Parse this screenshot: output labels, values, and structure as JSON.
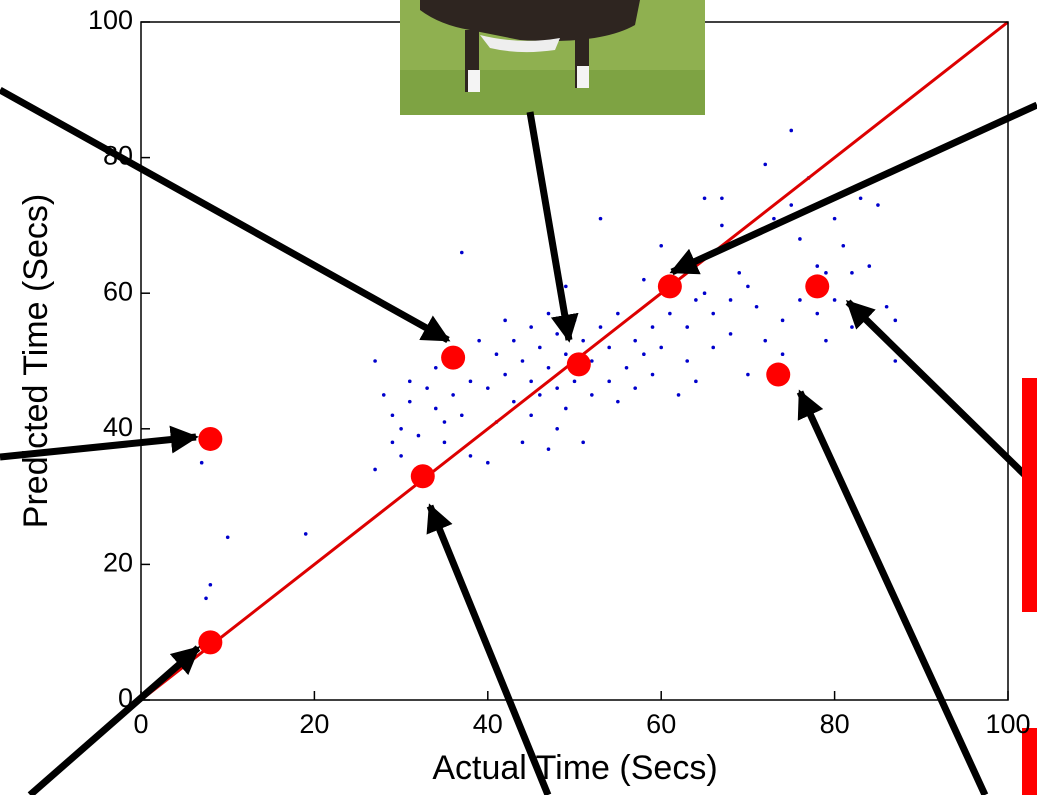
{
  "chart_data": {
    "type": "scatter",
    "xlabel": "Actual Time (Secs)",
    "ylabel": "Predicted Time (Secs)",
    "xlim": [
      0,
      100
    ],
    "ylim": [
      0,
      100
    ],
    "xticks": [
      0,
      20,
      40,
      60,
      80,
      100
    ],
    "yticks": [
      0,
      20,
      40,
      60,
      80,
      100
    ],
    "grid": false,
    "series": [
      {
        "color": "#0000cc",
        "marker": "small",
        "x": [
          7,
          7.5,
          8,
          10,
          19,
          27,
          27,
          28,
          29,
          29,
          30,
          30,
          31,
          31,
          32,
          33,
          34,
          34,
          35,
          35,
          36,
          37,
          37,
          38,
          38,
          39,
          40,
          40,
          41,
          41,
          42,
          42,
          43,
          43,
          44,
          44,
          45,
          45,
          45,
          46,
          46,
          47,
          47,
          47,
          48,
          48,
          48,
          49,
          49,
          49,
          50,
          50,
          51,
          51,
          52,
          52,
          53,
          53,
          54,
          54,
          55,
          55,
          56,
          57,
          57,
          58,
          58,
          59,
          59,
          60,
          60,
          61,
          62,
          62,
          63,
          63,
          64,
          64,
          65,
          65,
          66,
          66,
          67,
          67,
          68,
          68,
          70,
          71,
          72,
          72,
          73,
          74,
          74,
          75,
          75,
          76,
          76,
          77,
          78,
          78,
          79,
          79,
          80,
          80,
          81,
          82,
          82,
          83,
          84,
          85,
          86,
          87,
          87,
          70,
          69
        ],
        "values": [
          35,
          15,
          17,
          24,
          24.5,
          50,
          34,
          45,
          42,
          38,
          40,
          36,
          47,
          44,
          39,
          46,
          43,
          49,
          41,
          38,
          45,
          42,
          66,
          47,
          36,
          53,
          46,
          35,
          51,
          41,
          48,
          56,
          53,
          44,
          50,
          38,
          55,
          47,
          42,
          52,
          45,
          49,
          57,
          37,
          46,
          54,
          40,
          61,
          43,
          51,
          56,
          47,
          38,
          53,
          45,
          50,
          71,
          55,
          47,
          52,
          44,
          57,
          49,
          53,
          46,
          62,
          51,
          48,
          55,
          67,
          52,
          57,
          45,
          64,
          55,
          50,
          59,
          47,
          74,
          60,
          57,
          52,
          70,
          74,
          59,
          54,
          61,
          58,
          53,
          79,
          71,
          56,
          51,
          73,
          84,
          68,
          59,
          77,
          57,
          64,
          63,
          53,
          59,
          71,
          67,
          55,
          63,
          74,
          64,
          73,
          58,
          50,
          56,
          48,
          63
        ]
      },
      {
        "color": "#ff0000",
        "marker": "large",
        "x": [
          8,
          8,
          32.5,
          36,
          50.5,
          61,
          73.5,
          78
        ],
        "values": [
          8.5,
          38.5,
          33,
          50.5,
          49.5,
          61,
          48,
          61
        ]
      },
      {
        "color": "#dd0000",
        "marker": "line",
        "x": [
          0,
          100
        ],
        "values": [
          0,
          100
        ]
      }
    ]
  }
}
